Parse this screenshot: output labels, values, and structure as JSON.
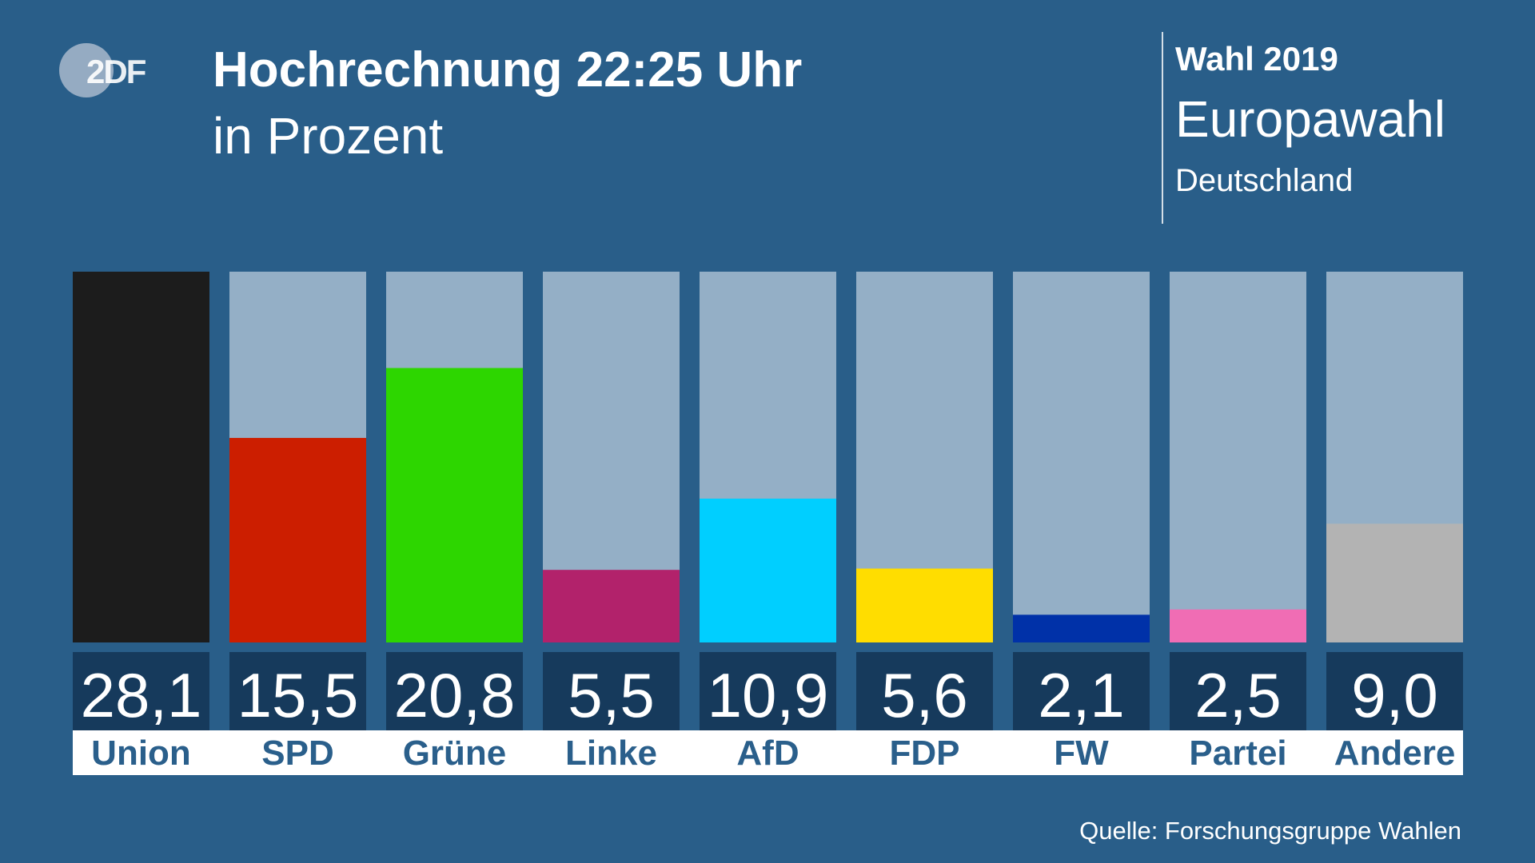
{
  "brand": {
    "logo_text": "2DF",
    "logo_icon": "zdf-logo-icon"
  },
  "header": {
    "title": "Hochrechnung 22:25 Uhr",
    "subtitle": "in Prozent"
  },
  "election": {
    "label": "Wahl 2019",
    "name": "Europawahl",
    "region": "Deutschland"
  },
  "source": "Quelle: Forschungsgruppe Wahlen",
  "colors": {
    "background": "#295e89",
    "track": "#94afc6",
    "value_box": "#163a5c",
    "label_text": "#2a5f8b"
  },
  "chart_data": {
    "type": "bar",
    "title": "Hochrechnung 22:25 Uhr",
    "subtitle": "in Prozent",
    "categories": [
      "Union",
      "SPD",
      "Grüne",
      "Linke",
      "AfD",
      "FDP",
      "FW",
      "Partei",
      "Andere"
    ],
    "values": [
      28.1,
      15.5,
      20.8,
      5.5,
      10.9,
      5.6,
      2.1,
      2.5,
      9.0
    ],
    "value_labels": [
      "28,1",
      "15,5",
      "20,8",
      "5,5",
      "10,9",
      "5,6",
      "2,1",
      "2,5",
      "9,0"
    ],
    "colors": [
      "#1c1c1c",
      "#cc1e00",
      "#2dd600",
      "#b2226b",
      "#00cfff",
      "#ffdd00",
      "#0031a8",
      "#f06db4",
      "#b3b3b3"
    ],
    "ylim": [
      0,
      28.1
    ],
    "grid": false,
    "legend": "none"
  }
}
